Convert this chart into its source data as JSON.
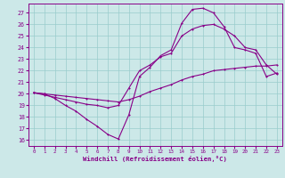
{
  "xlabel": "Windchill (Refroidissement éolien,°C)",
  "bg_color": "#cce8e8",
  "grid_color": "#99cccc",
  "line_color": "#880088",
  "xlim": [
    -0.5,
    23.5
  ],
  "ylim": [
    15.5,
    27.8
  ],
  "yticks": [
    16,
    17,
    18,
    19,
    20,
    21,
    22,
    23,
    24,
    25,
    26,
    27
  ],
  "xticks": [
    0,
    1,
    2,
    3,
    4,
    5,
    6,
    7,
    8,
    9,
    10,
    11,
    12,
    13,
    14,
    15,
    16,
    17,
    18,
    19,
    20,
    21,
    22,
    23
  ],
  "curve1_x": [
    0,
    1,
    2,
    3,
    4,
    5,
    6,
    7,
    8,
    9,
    10,
    11,
    12,
    13,
    14,
    15,
    16,
    17,
    18,
    19,
    20,
    21,
    22,
    23
  ],
  "curve1_y": [
    20.1,
    20.0,
    19.6,
    19.0,
    18.5,
    17.8,
    17.2,
    16.5,
    16.1,
    18.2,
    21.5,
    22.3,
    23.3,
    23.8,
    26.1,
    27.3,
    27.4,
    27.0,
    25.8,
    24.0,
    23.8,
    23.5,
    21.5,
    21.8
  ],
  "curve2_x": [
    0,
    1,
    2,
    3,
    4,
    5,
    6,
    7,
    8,
    9,
    10,
    11,
    12,
    13,
    14,
    15,
    16,
    17,
    18,
    19,
    20,
    21,
    22,
    23
  ],
  "curve2_y": [
    20.1,
    19.9,
    19.7,
    19.5,
    19.3,
    19.1,
    19.0,
    18.8,
    19.0,
    20.5,
    22.0,
    22.5,
    23.2,
    23.5,
    25.0,
    25.6,
    25.9,
    26.0,
    25.6,
    25.0,
    24.0,
    23.8,
    22.5,
    21.7
  ],
  "curve3_x": [
    0,
    1,
    2,
    3,
    4,
    5,
    6,
    7,
    8,
    9,
    10,
    11,
    12,
    13,
    14,
    15,
    16,
    17,
    18,
    19,
    20,
    21,
    22,
    23
  ],
  "curve3_y": [
    20.1,
    20.0,
    19.9,
    19.8,
    19.7,
    19.6,
    19.5,
    19.4,
    19.3,
    19.5,
    19.8,
    20.2,
    20.5,
    20.8,
    21.2,
    21.5,
    21.7,
    22.0,
    22.1,
    22.2,
    22.3,
    22.4,
    22.4,
    22.5
  ]
}
